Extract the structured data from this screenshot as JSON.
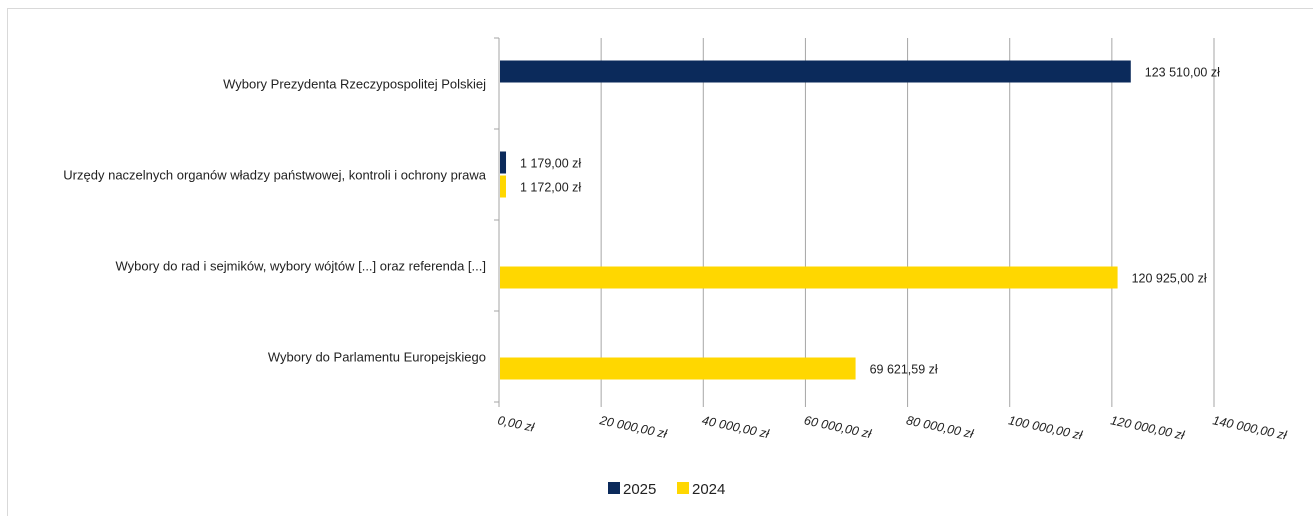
{
  "chart_data": {
    "type": "bar",
    "orientation": "horizontal",
    "categories": [
      "Wybory Prezydenta Rzeczypospolitej Polskiej",
      "Urzędy naczelnych organów władzy państwowej, kontroli i ochrony prawa",
      "Wybory do rad i sejmików, wybory wójtów [...] oraz referenda [...]",
      "Wybory do Parlamentu Europejskiego"
    ],
    "series": [
      {
        "name": "2025",
        "color": "#0b2a5b",
        "values": [
          123510.0,
          1179.0,
          null,
          null
        ],
        "labels": [
          "123 510,00 zł",
          "1 179,00 zł",
          "",
          ""
        ]
      },
      {
        "name": "2024",
        "color": "#ffd700",
        "values": [
          null,
          1172.0,
          120925.0,
          69621.59
        ],
        "labels": [
          "",
          "1 172,00 zł",
          "120 925,00 zł",
          "69 621,59 zł"
        ]
      }
    ],
    "xlim": [
      0,
      140000
    ],
    "x_ticks": [
      0,
      20000,
      40000,
      60000,
      80000,
      100000,
      120000,
      140000
    ],
    "x_tick_labels": [
      "0,00 zł",
      "20 000,00 zł",
      "40 000,00 zł",
      "60 000,00 zł",
      "80 000,00 zł",
      "100 000,00 zł",
      "120 000,00 zł",
      "140 000,00 zł"
    ],
    "grid": "vertical",
    "legend": {
      "position": "bottom",
      "entries": [
        "2025",
        "2024"
      ]
    },
    "title": "",
    "xlabel": "",
    "ylabel": ""
  }
}
